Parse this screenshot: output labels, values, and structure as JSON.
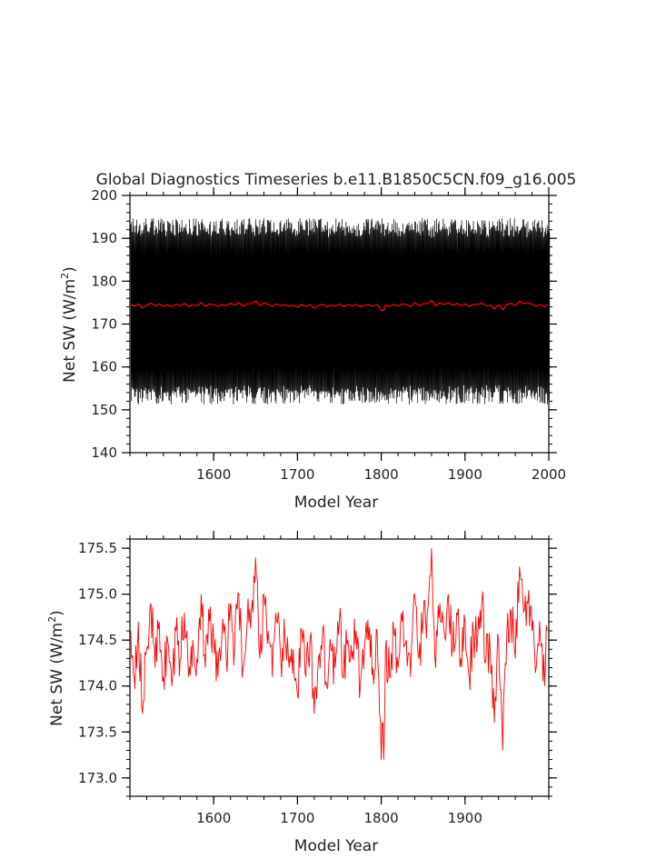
{
  "chart_data": [
    {
      "type": "line",
      "title": "Global Diagnostics Timeseries b.e11.B1850C5CN.f09_g16.005",
      "xlabel": "Model Year",
      "ylabel_base": "Net SW (W/m",
      "ylabel_sup": "2",
      "ylabel_end": ")",
      "xlim": [
        1500,
        2000
      ],
      "ylim": [
        140,
        200
      ],
      "xticks": [
        1600,
        1700,
        1800,
        1900,
        2000
      ],
      "xtick_labels": [
        "1600",
        "1700",
        "1800",
        "1900",
        "2000"
      ],
      "yticks": [
        140,
        150,
        160,
        170,
        180,
        190,
        200
      ],
      "ytick_labels": [
        "140",
        "150",
        "160",
        "170",
        "180",
        "190",
        "200"
      ],
      "grid": false,
      "series": [
        {
          "color": "#000000",
          "description": "monthly values oscillating between about 150 and 195",
          "x_start": 1501,
          "x_end": 2000,
          "low": 149.5,
          "high": 195.5,
          "mean": 173.0
        },
        {
          "color": "#ff0000",
          "description": "annual mean, nearly flat near 174.4",
          "mean": 174.4
        }
      ]
    },
    {
      "type": "line",
      "title": "",
      "xlabel": "Model Year",
      "ylabel_base": "Net SW (W/m",
      "ylabel_sup": "2",
      "ylabel_end": ")",
      "xlim": [
        1500,
        2000
      ],
      "ylim": [
        172.8,
        175.6
      ],
      "xticks": [
        1600,
        1700,
        1800,
        1900
      ],
      "xtick_labels": [
        "1600",
        "1700",
        "1800",
        "1900"
      ],
      "yticks": [
        173.0,
        173.5,
        174.0,
        174.5,
        175.0,
        175.5
      ],
      "ytick_labels": [
        "173.0",
        "173.5",
        "174.0",
        "174.5",
        "175.0",
        "175.5"
      ],
      "grid": false,
      "series": [
        {
          "color": "#ff0000",
          "x": [
            1501,
            1505,
            1510,
            1515,
            1520,
            1525,
            1530,
            1535,
            1540,
            1545,
            1550,
            1555,
            1560,
            1565,
            1570,
            1575,
            1580,
            1585,
            1590,
            1595,
            1600,
            1605,
            1610,
            1615,
            1620,
            1625,
            1630,
            1635,
            1640,
            1645,
            1650,
            1655,
            1660,
            1665,
            1670,
            1675,
            1680,
            1685,
            1690,
            1695,
            1700,
            1705,
            1710,
            1715,
            1720,
            1725,
            1730,
            1735,
            1740,
            1745,
            1750,
            1755,
            1760,
            1765,
            1770,
            1775,
            1780,
            1785,
            1790,
            1795,
            1800,
            1803,
            1805,
            1810,
            1815,
            1820,
            1825,
            1830,
            1835,
            1840,
            1845,
            1850,
            1855,
            1860,
            1865,
            1870,
            1875,
            1880,
            1885,
            1890,
            1895,
            1900,
            1905,
            1910,
            1915,
            1920,
            1925,
            1930,
            1935,
            1940,
            1945,
            1950,
            1955,
            1960,
            1965,
            1970,
            1975,
            1980,
            1985,
            1990,
            1995,
            1998
          ],
          "y": [
            174.6,
            174.1,
            174.7,
            173.7,
            174.4,
            174.9,
            174.2,
            174.7,
            174.1,
            174.5,
            174.0,
            174.6,
            174.3,
            174.8,
            174.1,
            174.5,
            174.3,
            175.0,
            174.2,
            174.7,
            174.5,
            174.1,
            174.6,
            174.3,
            174.9,
            174.4,
            175.0,
            174.2,
            174.7,
            174.8,
            175.4,
            174.3,
            175.0,
            174.6,
            174.1,
            174.7,
            174.3,
            174.5,
            174.2,
            174.4,
            173.9,
            174.6,
            174.1,
            174.5,
            173.7,
            174.3,
            174.6,
            174.0,
            174.4,
            174.2,
            174.7,
            174.1,
            174.5,
            174.3,
            174.6,
            174.0,
            174.4,
            174.5,
            174.2,
            174.6,
            173.2,
            173.2,
            174.4,
            174.1,
            174.6,
            174.2,
            174.7,
            174.5,
            174.1,
            175.0,
            174.3,
            174.7,
            174.8,
            175.5,
            174.2,
            174.9,
            174.6,
            175.0,
            174.4,
            174.8,
            174.3,
            174.7,
            174.1,
            174.6,
            174.5,
            174.9,
            174.3,
            174.4,
            173.6,
            174.5,
            173.3,
            174.6,
            174.8,
            174.3,
            175.3,
            174.8,
            174.9,
            174.6,
            174.2,
            174.5,
            174.0,
            174.6
          ]
        }
      ]
    }
  ]
}
